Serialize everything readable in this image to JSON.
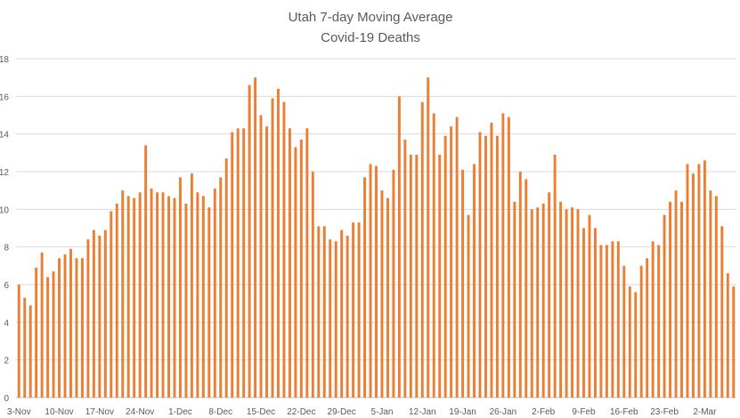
{
  "chart_data": {
    "type": "bar",
    "title": "Utah 7-day Moving Average",
    "subtitle": "Covid-19 Deaths",
    "xlabel": "",
    "ylabel": "",
    "ylim": [
      0,
      18
    ],
    "yticks": [
      0,
      2,
      4,
      6,
      8,
      10,
      12,
      14,
      16,
      18
    ],
    "grid": true,
    "legend": "none",
    "color": "#ED7D31",
    "x_tick_labels": [
      "3-Nov",
      "10-Nov",
      "17-Nov",
      "24-Nov",
      "1-Dec",
      "8-Dec",
      "15-Dec",
      "22-Dec",
      "29-Dec",
      "5-Jan",
      "12-Jan",
      "19-Jan",
      "26-Jan",
      "2-Feb",
      "9-Feb",
      "16-Feb",
      "23-Feb",
      "2-Mar"
    ],
    "start_date": "3-Nov",
    "values": [
      6.0,
      5.3,
      4.9,
      6.9,
      7.7,
      6.4,
      6.7,
      7.4,
      7.6,
      7.9,
      7.4,
      7.4,
      8.4,
      8.9,
      8.6,
      8.9,
      9.9,
      10.3,
      11.0,
      10.7,
      10.6,
      10.9,
      13.4,
      11.1,
      10.9,
      10.9,
      10.7,
      10.6,
      11.7,
      10.3,
      11.9,
      10.9,
      10.7,
      10.1,
      11.1,
      11.7,
      12.7,
      14.1,
      14.3,
      14.3,
      16.6,
      17.0,
      15.0,
      14.4,
      15.9,
      16.4,
      15.7,
      14.3,
      13.3,
      13.7,
      14.3,
      12.0,
      9.1,
      9.1,
      8.4,
      8.3,
      8.9,
      8.6,
      9.3,
      9.3,
      11.7,
      12.4,
      12.3,
      11.0,
      10.6,
      12.1,
      16.0,
      13.7,
      12.9,
      12.9,
      15.7,
      17.0,
      15.1,
      12.9,
      13.9,
      14.4,
      14.9,
      12.1,
      9.7,
      12.4,
      14.1,
      13.9,
      14.6,
      13.9,
      15.1,
      14.9,
      10.4,
      12.0,
      11.6,
      10.0,
      10.1,
      10.3,
      10.9,
      12.9,
      10.4,
      10.0,
      10.1,
      10.0,
      9.0,
      9.7,
      9.0,
      8.1,
      8.1,
      8.3,
      8.3,
      7.0,
      5.9,
      5.6,
      7.0,
      7.4,
      8.3,
      8.1,
      9.7,
      10.4,
      11.0,
      10.4,
      12.4,
      11.9,
      12.4,
      12.6,
      11.0,
      10.7,
      9.1,
      6.6,
      5.9
    ]
  }
}
